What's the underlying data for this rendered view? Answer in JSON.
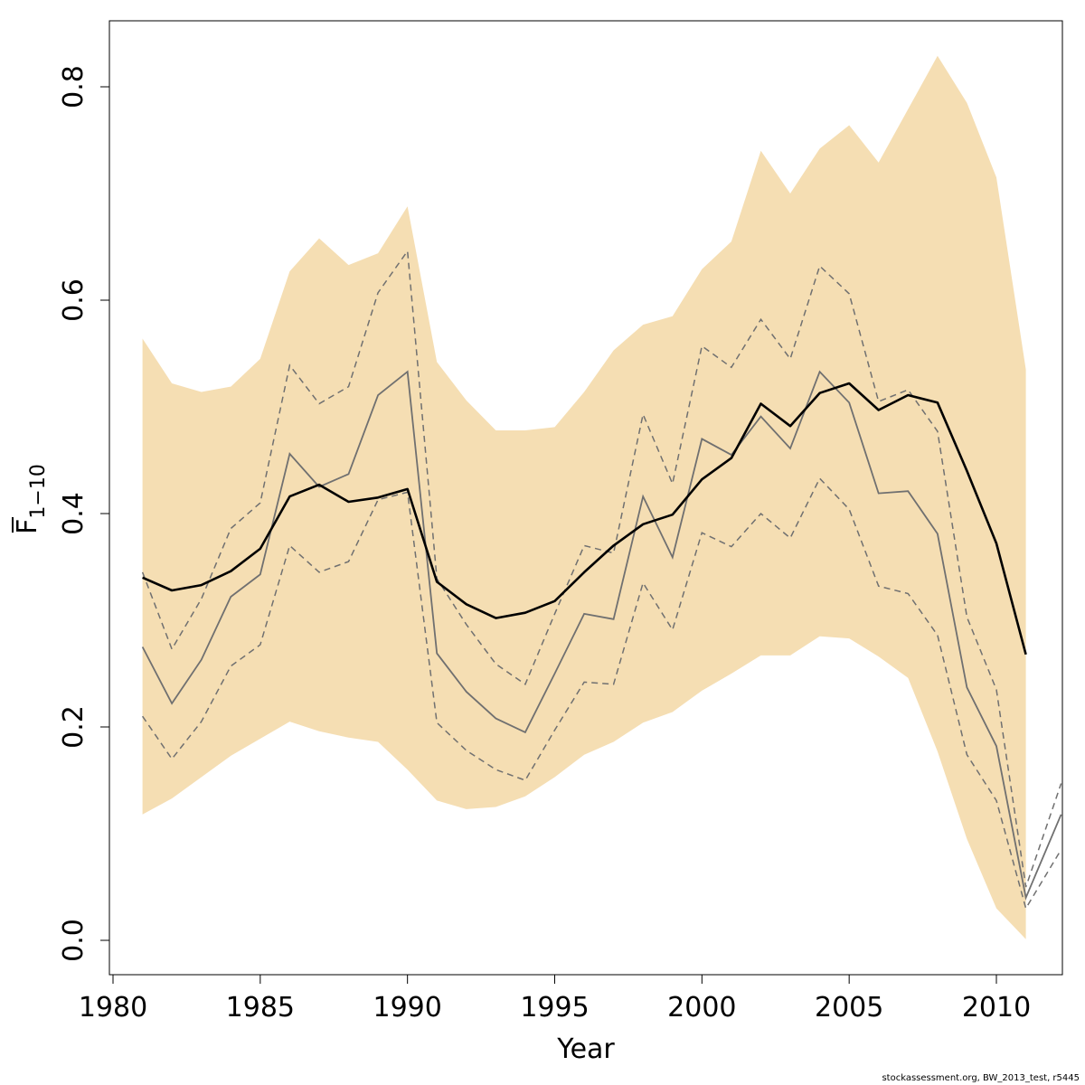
{
  "chart_data": {
    "type": "line",
    "xlabel": "Year",
    "ylabel_main": "F",
    "ylabel_subscript": "1−10",
    "xlim": [
      1980,
      2012.2
    ],
    "ylim": [
      0,
      0.85
    ],
    "xticks": [
      1980,
      1985,
      1990,
      1995,
      2000,
      2005,
      2010
    ],
    "xtick_labels": [
      "1980",
      "1985",
      "1990",
      "1995",
      "2000",
      "2005",
      "2010"
    ],
    "yticks": [
      0.0,
      0.2,
      0.4,
      0.6,
      0.8
    ],
    "ytick_labels": [
      "0.0",
      "0.2",
      "0.4",
      "0.6",
      "0.8"
    ],
    "grid": false,
    "colors": {
      "band": "#f5deb3",
      "main": "#000000",
      "retro": "#707070"
    },
    "x": [
      1981,
      1982,
      1983,
      1984,
      1985,
      1986,
      1987,
      1988,
      1989,
      1990,
      1991,
      1992,
      1993,
      1994,
      1995,
      1996,
      1997,
      1998,
      1999,
      2000,
      2001,
      2002,
      2003,
      2004,
      2005,
      2006,
      2007,
      2008,
      2009,
      2010,
      2011
    ],
    "series": [
      {
        "role": "confidence-band",
        "upper": [
          0.564,
          0.522,
          0.514,
          0.519,
          0.545,
          0.627,
          0.658,
          0.633,
          0.644,
          0.688,
          0.542,
          0.506,
          0.478,
          0.478,
          0.481,
          0.514,
          0.553,
          0.577,
          0.585,
          0.629,
          0.655,
          0.74,
          0.7,
          0.742,
          0.764,
          0.729,
          0.779,
          0.829,
          0.785,
          0.715,
          0.535
        ],
        "lower": [
          0.118,
          0.133,
          0.153,
          0.173,
          0.189,
          0.205,
          0.196,
          0.19,
          0.186,
          0.16,
          0.131,
          0.123,
          0.125,
          0.135,
          0.153,
          0.174,
          0.186,
          0.204,
          0.214,
          0.234,
          0.25,
          0.267,
          0.267,
          0.285,
          0.283,
          0.266,
          0.246,
          0.177,
          0.095,
          0.03,
          0.001
        ]
      },
      {
        "role": "estimate",
        "values": [
          0.34,
          0.328,
          0.333,
          0.346,
          0.367,
          0.416,
          0.427,
          0.411,
          0.415,
          0.423,
          0.336,
          0.315,
          0.302,
          0.307,
          0.318,
          0.345,
          0.37,
          0.39,
          0.399,
          0.432,
          0.452,
          0.503,
          0.482,
          0.513,
          0.522,
          0.497,
          0.511,
          0.504,
          0.44,
          0.372,
          0.268
        ]
      },
      {
        "role": "retrospective-estimate",
        "x": [
          1981,
          1982,
          1983,
          1984,
          1985,
          1986,
          1987,
          1988,
          1989,
          1990,
          1991,
          1992,
          1993,
          1994,
          1995,
          1996,
          1997,
          1998,
          1999,
          2000,
          2001,
          2002,
          2003,
          2004,
          2005,
          2006,
          2007,
          2008,
          2009,
          2010,
          2011,
          2012.2
        ],
        "values": [
          0.275,
          0.222,
          0.263,
          0.322,
          0.343,
          0.456,
          0.425,
          0.437,
          0.511,
          0.533,
          0.269,
          0.233,
          0.208,
          0.195,
          0.25,
          0.306,
          0.301,
          0.416,
          0.359,
          0.47,
          0.455,
          0.491,
          0.461,
          0.533,
          0.504,
          0.419,
          0.421,
          0.381,
          0.237,
          0.182,
          0.04,
          0.118
        ]
      },
      {
        "role": "retrospective-upper",
        "x": [
          1981,
          1982,
          1983,
          1984,
          1985,
          1986,
          1987,
          1988,
          1989,
          1990,
          1991,
          1992,
          1993,
          1994,
          1995,
          1996,
          1997,
          1998,
          1999,
          2000,
          2001,
          2002,
          2003,
          2004,
          2005,
          2006,
          2007,
          2008,
          2009,
          2010,
          2011,
          2012.2
        ],
        "values": [
          0.345,
          0.273,
          0.32,
          0.386,
          0.41,
          0.539,
          0.503,
          0.519,
          0.607,
          0.646,
          0.339,
          0.296,
          0.259,
          0.24,
          0.306,
          0.37,
          0.363,
          0.493,
          0.428,
          0.557,
          0.537,
          0.582,
          0.545,
          0.632,
          0.606,
          0.505,
          0.516,
          0.477,
          0.303,
          0.235,
          0.05,
          0.147
        ]
      },
      {
        "role": "retrospective-lower",
        "x": [
          1981,
          1982,
          1983,
          1984,
          1985,
          1986,
          1987,
          1988,
          1989,
          1990,
          1991,
          1992,
          1993,
          1994,
          1995,
          1996,
          1997,
          1998,
          1999,
          2000,
          2001,
          2002,
          2003,
          2004,
          2005,
          2006,
          2007,
          2008,
          2009,
          2010,
          2011,
          2012.2
        ],
        "values": [
          0.21,
          0.17,
          0.205,
          0.257,
          0.277,
          0.37,
          0.345,
          0.355,
          0.413,
          0.42,
          0.204,
          0.178,
          0.16,
          0.15,
          0.197,
          0.242,
          0.24,
          0.335,
          0.291,
          0.382,
          0.369,
          0.4,
          0.377,
          0.433,
          0.404,
          0.332,
          0.325,
          0.286,
          0.174,
          0.131,
          0.03,
          0.085
        ]
      }
    ]
  },
  "footnote": "stockassessment.org, BW_2013_test, r5445"
}
